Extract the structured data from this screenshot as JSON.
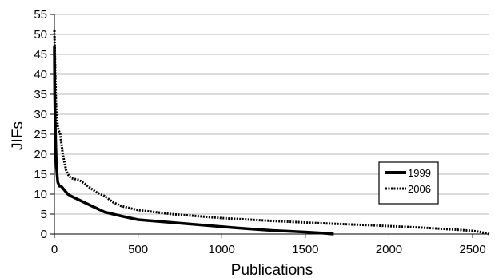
{
  "chart_data": {
    "type": "line",
    "xlabel": "Publications",
    "ylabel": "JIFs",
    "xlim": [
      0,
      2600
    ],
    "ylim": [
      0,
      55
    ],
    "xticks": [
      0,
      500,
      1000,
      1500,
      2000,
      2500
    ],
    "yticks": [
      0,
      5,
      10,
      15,
      20,
      25,
      30,
      35,
      40,
      45,
      50,
      55
    ],
    "grid": "horizontal",
    "legend_position": "right",
    "series": [
      {
        "name": "1999",
        "style": "solid",
        "color": "#000000",
        "x": [
          0,
          2,
          5,
          8,
          12,
          20,
          30,
          40,
          60,
          80,
          100,
          150,
          200,
          250,
          300,
          400,
          500,
          700,
          900,
          1100,
          1300,
          1500,
          1600,
          1670
        ],
        "y": [
          47,
          35,
          28,
          22,
          17,
          13,
          12,
          12,
          11,
          10,
          9.5,
          8.5,
          7.5,
          6.5,
          5.5,
          4.5,
          3.6,
          2.9,
          2.2,
          1.5,
          0.9,
          0.5,
          0.25,
          0
        ]
      },
      {
        "name": "2006",
        "style": "dotted",
        "color": "#000000",
        "x": [
          0,
          3,
          6,
          10,
          15,
          20,
          25,
          35,
          50,
          70,
          80,
          100,
          150,
          200,
          250,
          300,
          350,
          400,
          500,
          700,
          1000,
          1300,
          1600,
          1900,
          2200,
          2400,
          2500,
          2550,
          2600
        ],
        "y": [
          51,
          45,
          38,
          32,
          29,
          27,
          26,
          25,
          20,
          16,
          15,
          14,
          13.5,
          12,
          10.5,
          9.5,
          8,
          7,
          6,
          5,
          4,
          3.3,
          2.7,
          2.2,
          1.6,
          1.1,
          0.8,
          0.5,
          0
        ]
      }
    ]
  }
}
